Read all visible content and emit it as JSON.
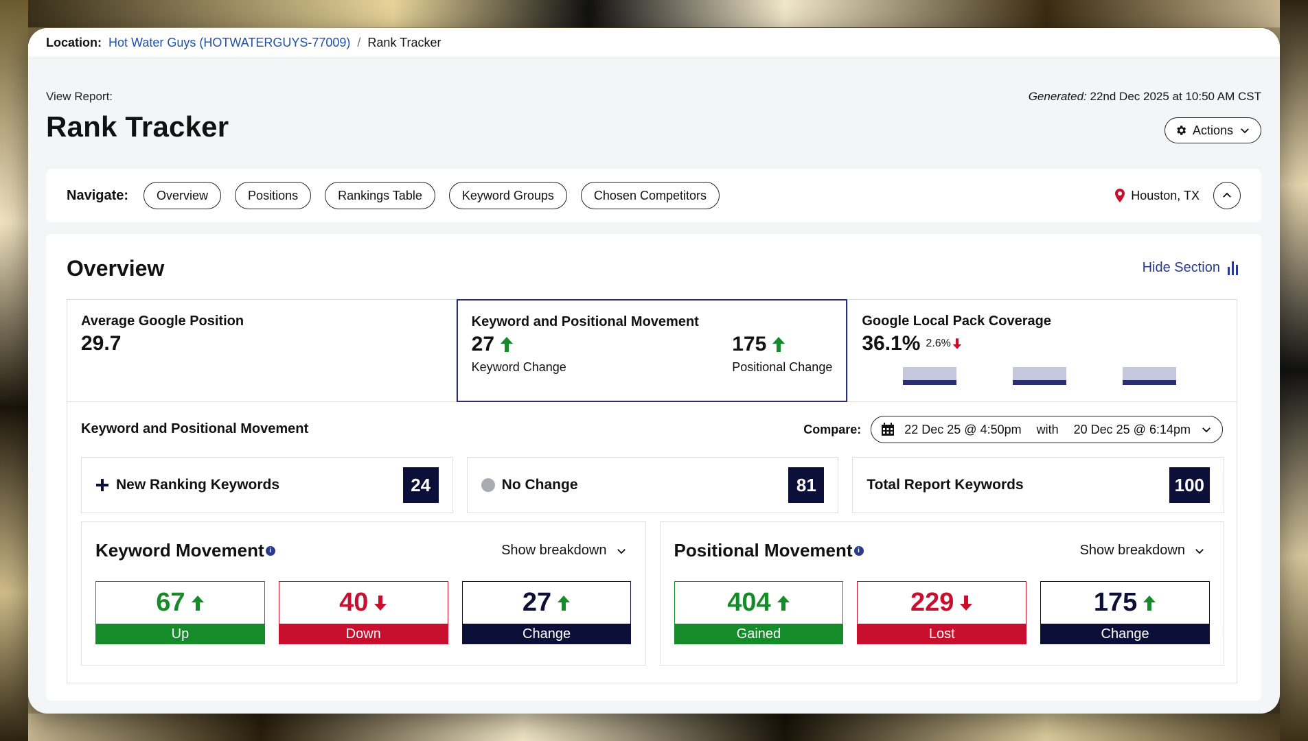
{
  "location_bar": {
    "label": "Location:",
    "location_link": "Hot Water Guys (HOTWATERGUYS-77009)",
    "separator": "/",
    "current": "Rank Tracker"
  },
  "header": {
    "view_label": "View Report:",
    "title": "Rank Tracker",
    "generated_label": "Generated:",
    "generated_value": "22nd Dec 2025 at 10:50 AM CST",
    "actions_label": "Actions"
  },
  "navigate": {
    "label": "Navigate:",
    "pills": [
      "Overview",
      "Positions",
      "Rankings Table",
      "Keyword Groups",
      "Chosen Competitors"
    ],
    "location": "Houston, TX"
  },
  "overview": {
    "title": "Overview",
    "hide_label": "Hide Section",
    "cards": {
      "avg_position": {
        "title": "Average Google Position",
        "value": "29.7"
      },
      "movement": {
        "title": "Keyword and Positional Movement",
        "keyword_value": "27",
        "keyword_label": "Keyword Change",
        "positional_value": "175",
        "positional_label": "Positional Change"
      },
      "local_pack": {
        "title": "Google Local Pack Coverage",
        "value": "36.1%",
        "delta": "2.6%",
        "bars": [
          0.27,
          0.27,
          0.27
        ]
      }
    },
    "kpm": {
      "title": "Keyword and Positional Movement",
      "compare_label": "Compare:",
      "date_from": "22 Dec 25 @ 4:50pm",
      "with_label": "with",
      "date_to": "20 Dec 25 @ 6:14pm"
    },
    "stats": {
      "new": {
        "label": "New Ranking Keywords",
        "count": "24"
      },
      "nochange": {
        "label": "No Change",
        "count": "81"
      },
      "total": {
        "label": "Total Report Keywords",
        "count": "100"
      }
    },
    "keyword_movement": {
      "title": "Keyword Movement",
      "breakdown": "Show breakdown",
      "up": {
        "value": "67",
        "label": "Up"
      },
      "down": {
        "value": "40",
        "label": "Down"
      },
      "change": {
        "value": "27",
        "label": "Change"
      }
    },
    "positional_movement": {
      "title": "Positional Movement",
      "breakdown": "Show breakdown",
      "gained": {
        "value": "404",
        "label": "Gained"
      },
      "lost": {
        "value": "229",
        "label": "Lost"
      },
      "change": {
        "value": "175",
        "label": "Change"
      }
    }
  },
  "colors": {
    "navy": "#0c1038",
    "green": "#168b2a",
    "red": "#c8102e",
    "link": "#1f4fa8"
  }
}
